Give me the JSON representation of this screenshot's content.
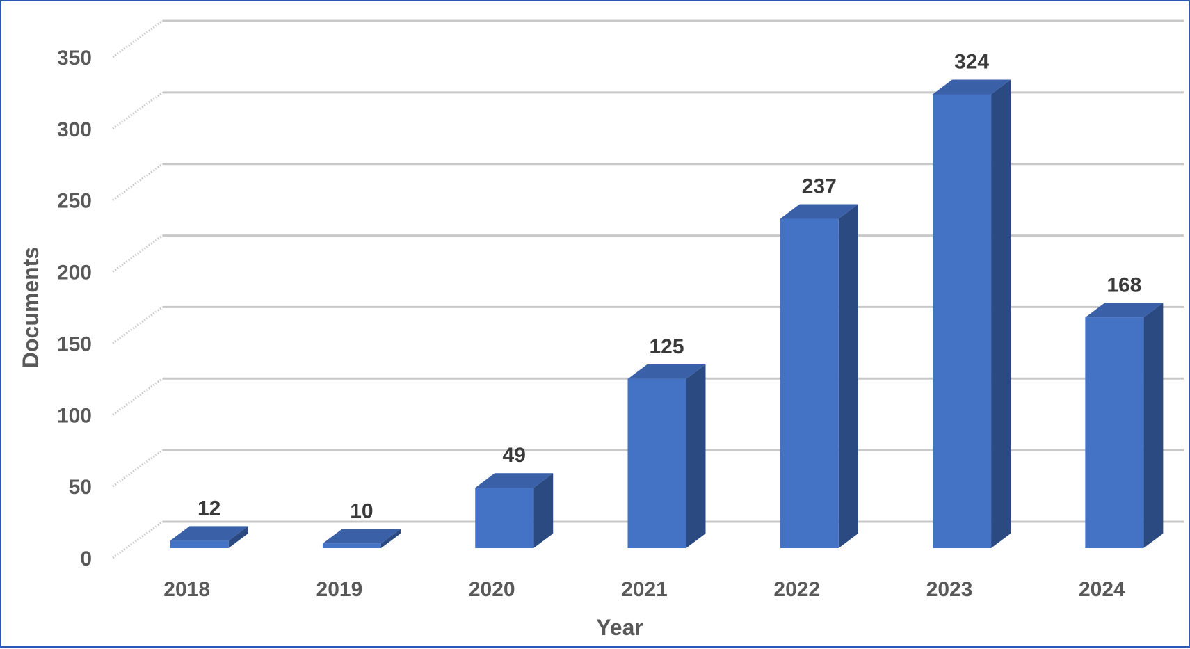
{
  "chart_data": {
    "type": "bar",
    "style": "3d-column",
    "categories": [
      "2018",
      "2019",
      "2020",
      "2021",
      "2022",
      "2023",
      "2024"
    ],
    "values": [
      12,
      10,
      49,
      125,
      237,
      324,
      168
    ],
    "xlabel": "Year",
    "ylabel": "Documents",
    "ylim": [
      0,
      350
    ],
    "yticks": [
      "0",
      "50",
      "100",
      "150",
      "200",
      "250",
      "300",
      "350"
    ],
    "grid": true,
    "legend": "none",
    "data_labels": true,
    "colors": {
      "bar_front": "#4472c4",
      "bar_side": "#2c4a82",
      "bar_top": "#3a60a8",
      "gridline": "#c8c8c8",
      "frame_border": "#2f55b5",
      "label_text": "#595959"
    }
  }
}
